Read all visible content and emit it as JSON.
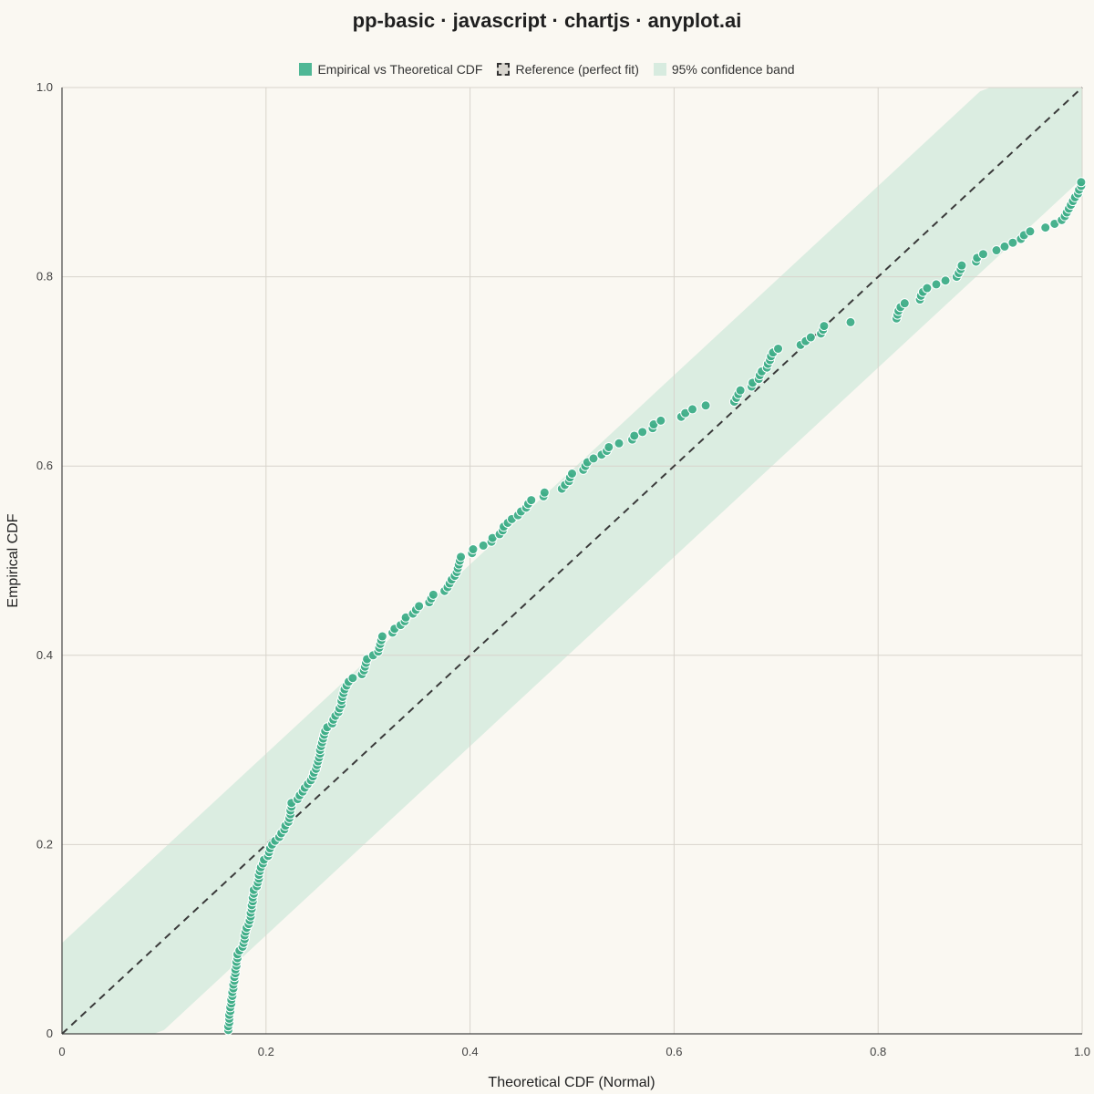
{
  "chart_data": {
    "type": "scatter",
    "title": "pp-basic · javascript · chartjs · anyplot.ai",
    "xlabel": "Theoretical CDF (Normal)",
    "ylabel": "Empirical CDF",
    "xlim": [
      0,
      1
    ],
    "ylim": [
      0,
      1
    ],
    "x_ticks": [
      "0",
      "0.2",
      "0.4",
      "0.6",
      "0.8",
      "1.0"
    ],
    "y_ticks": [
      "0",
      "0.2",
      "0.4",
      "0.6",
      "0.8",
      "1.0"
    ],
    "grid": true,
    "legend": {
      "position": "top",
      "entries": [
        "Empirical vs Theoretical CDF",
        "Reference (perfect fit)",
        "95% confidence band"
      ]
    },
    "colors": {
      "points": "#3fae88",
      "point_border": "#ffffff",
      "band": "#d7ebdf",
      "reference": "#3a3a3a",
      "grid": "#d8d4cc",
      "axis": "#444444"
    },
    "band_half_width": 0.096,
    "series": [
      {
        "name": "Empirical vs Theoretical CDF",
        "points": [
          [
            0.163,
            0.004
          ],
          [
            0.163,
            0.008
          ],
          [
            0.164,
            0.012
          ],
          [
            0.164,
            0.016
          ],
          [
            0.164,
            0.02
          ],
          [
            0.165,
            0.024
          ],
          [
            0.165,
            0.028
          ],
          [
            0.166,
            0.032
          ],
          [
            0.166,
            0.036
          ],
          [
            0.167,
            0.04
          ],
          [
            0.167,
            0.044
          ],
          [
            0.168,
            0.048
          ],
          [
            0.168,
            0.052
          ],
          [
            0.169,
            0.056
          ],
          [
            0.169,
            0.06
          ],
          [
            0.17,
            0.064
          ],
          [
            0.17,
            0.068
          ],
          [
            0.171,
            0.072
          ],
          [
            0.171,
            0.076
          ],
          [
            0.172,
            0.08
          ],
          [
            0.172,
            0.084
          ],
          [
            0.174,
            0.088
          ],
          [
            0.177,
            0.092
          ],
          [
            0.178,
            0.096
          ],
          [
            0.179,
            0.1
          ],
          [
            0.179,
            0.104
          ],
          [
            0.18,
            0.108
          ],
          [
            0.181,
            0.112
          ],
          [
            0.183,
            0.116
          ],
          [
            0.184,
            0.12
          ],
          [
            0.185,
            0.124
          ],
          [
            0.185,
            0.128
          ],
          [
            0.186,
            0.132
          ],
          [
            0.186,
            0.136
          ],
          [
            0.187,
            0.14
          ],
          [
            0.187,
            0.144
          ],
          [
            0.188,
            0.148
          ],
          [
            0.188,
            0.152
          ],
          [
            0.191,
            0.156
          ],
          [
            0.192,
            0.16
          ],
          [
            0.193,
            0.164
          ],
          [
            0.193,
            0.168
          ],
          [
            0.194,
            0.172
          ],
          [
            0.195,
            0.176
          ],
          [
            0.197,
            0.18
          ],
          [
            0.198,
            0.184
          ],
          [
            0.202,
            0.188
          ],
          [
            0.203,
            0.192
          ],
          [
            0.204,
            0.196
          ],
          [
            0.206,
            0.2
          ],
          [
            0.209,
            0.204
          ],
          [
            0.213,
            0.208
          ],
          [
            0.215,
            0.212
          ],
          [
            0.218,
            0.216
          ],
          [
            0.219,
            0.22
          ],
          [
            0.222,
            0.224
          ],
          [
            0.223,
            0.228
          ],
          [
            0.224,
            0.232
          ],
          [
            0.224,
            0.236
          ],
          [
            0.225,
            0.24
          ],
          [
            0.225,
            0.244
          ],
          [
            0.231,
            0.248
          ],
          [
            0.233,
            0.252
          ],
          [
            0.236,
            0.256
          ],
          [
            0.238,
            0.26
          ],
          [
            0.241,
            0.264
          ],
          [
            0.244,
            0.268
          ],
          [
            0.246,
            0.272
          ],
          [
            0.247,
            0.276
          ],
          [
            0.249,
            0.28
          ],
          [
            0.25,
            0.284
          ],
          [
            0.251,
            0.288
          ],
          [
            0.252,
            0.292
          ],
          [
            0.253,
            0.296
          ],
          [
            0.253,
            0.3
          ],
          [
            0.254,
            0.304
          ],
          [
            0.255,
            0.308
          ],
          [
            0.256,
            0.312
          ],
          [
            0.257,
            0.316
          ],
          [
            0.258,
            0.32
          ],
          [
            0.26,
            0.324
          ],
          [
            0.265,
            0.328
          ],
          [
            0.266,
            0.332
          ],
          [
            0.268,
            0.336
          ],
          [
            0.271,
            0.34
          ],
          [
            0.272,
            0.344
          ],
          [
            0.274,
            0.348
          ],
          [
            0.274,
            0.352
          ],
          [
            0.275,
            0.356
          ],
          [
            0.276,
            0.36
          ],
          [
            0.277,
            0.364
          ],
          [
            0.279,
            0.368
          ],
          [
            0.281,
            0.372
          ],
          [
            0.285,
            0.376
          ],
          [
            0.294,
            0.38
          ],
          [
            0.296,
            0.384
          ],
          [
            0.297,
            0.388
          ],
          [
            0.298,
            0.392
          ],
          [
            0.299,
            0.396
          ],
          [
            0.305,
            0.4
          ],
          [
            0.31,
            0.404
          ],
          [
            0.311,
            0.408
          ],
          [
            0.312,
            0.412
          ],
          [
            0.313,
            0.416
          ],
          [
            0.314,
            0.42
          ],
          [
            0.324,
            0.424
          ],
          [
            0.326,
            0.428
          ],
          [
            0.332,
            0.432
          ],
          [
            0.336,
            0.436
          ],
          [
            0.337,
            0.44
          ],
          [
            0.344,
            0.444
          ],
          [
            0.347,
            0.448
          ],
          [
            0.35,
            0.452
          ],
          [
            0.36,
            0.456
          ],
          [
            0.362,
            0.46
          ],
          [
            0.364,
            0.464
          ],
          [
            0.375,
            0.468
          ],
          [
            0.378,
            0.472
          ],
          [
            0.38,
            0.476
          ],
          [
            0.382,
            0.48
          ],
          [
            0.385,
            0.484
          ],
          [
            0.387,
            0.488
          ],
          [
            0.388,
            0.492
          ],
          [
            0.389,
            0.496
          ],
          [
            0.39,
            0.5
          ],
          [
            0.391,
            0.504
          ],
          [
            0.402,
            0.508
          ],
          [
            0.403,
            0.512
          ],
          [
            0.413,
            0.516
          ],
          [
            0.421,
            0.52
          ],
          [
            0.422,
            0.524
          ],
          [
            0.429,
            0.528
          ],
          [
            0.432,
            0.532
          ],
          [
            0.433,
            0.536
          ],
          [
            0.437,
            0.54
          ],
          [
            0.441,
            0.544
          ],
          [
            0.447,
            0.548
          ],
          [
            0.45,
            0.552
          ],
          [
            0.455,
            0.556
          ],
          [
            0.457,
            0.56
          ],
          [
            0.46,
            0.564
          ],
          [
            0.472,
            0.568
          ],
          [
            0.473,
            0.572
          ],
          [
            0.49,
            0.576
          ],
          [
            0.493,
            0.58
          ],
          [
            0.497,
            0.584
          ],
          [
            0.498,
            0.588
          ],
          [
            0.5,
            0.592
          ],
          [
            0.511,
            0.596
          ],
          [
            0.513,
            0.6
          ],
          [
            0.515,
            0.604
          ],
          [
            0.521,
            0.608
          ],
          [
            0.529,
            0.612
          ],
          [
            0.534,
            0.616
          ],
          [
            0.536,
            0.62
          ],
          [
            0.546,
            0.624
          ],
          [
            0.559,
            0.628
          ],
          [
            0.561,
            0.632
          ],
          [
            0.569,
            0.636
          ],
          [
            0.579,
            0.64
          ],
          [
            0.58,
            0.644
          ],
          [
            0.587,
            0.648
          ],
          [
            0.607,
            0.652
          ],
          [
            0.611,
            0.656
          ],
          [
            0.618,
            0.66
          ],
          [
            0.631,
            0.664
          ],
          [
            0.659,
            0.668
          ],
          [
            0.661,
            0.672
          ],
          [
            0.663,
            0.676
          ],
          [
            0.665,
            0.68
          ],
          [
            0.676,
            0.684
          ],
          [
            0.677,
            0.688
          ],
          [
            0.683,
            0.692
          ],
          [
            0.684,
            0.696
          ],
          [
            0.686,
            0.7
          ],
          [
            0.691,
            0.704
          ],
          [
            0.692,
            0.708
          ],
          [
            0.694,
            0.712
          ],
          [
            0.695,
            0.716
          ],
          [
            0.697,
            0.72
          ],
          [
            0.702,
            0.724
          ],
          [
            0.724,
            0.728
          ],
          [
            0.729,
            0.732
          ],
          [
            0.734,
            0.736
          ],
          [
            0.744,
            0.74
          ],
          [
            0.746,
            0.744
          ],
          [
            0.747,
            0.748
          ],
          [
            0.773,
            0.752
          ],
          [
            0.818,
            0.756
          ],
          [
            0.819,
            0.76
          ],
          [
            0.82,
            0.764
          ],
          [
            0.822,
            0.768
          ],
          [
            0.826,
            0.772
          ],
          [
            0.841,
            0.776
          ],
          [
            0.842,
            0.78
          ],
          [
            0.844,
            0.784
          ],
          [
            0.848,
            0.788
          ],
          [
            0.857,
            0.792
          ],
          [
            0.866,
            0.796
          ],
          [
            0.877,
            0.8
          ],
          [
            0.879,
            0.804
          ],
          [
            0.881,
            0.808
          ],
          [
            0.882,
            0.812
          ],
          [
            0.896,
            0.816
          ],
          [
            0.897,
            0.82
          ],
          [
            0.903,
            0.824
          ],
          [
            0.916,
            0.828
          ],
          [
            0.924,
            0.832
          ],
          [
            0.932,
            0.836
          ],
          [
            0.94,
            0.84
          ],
          [
            0.943,
            0.844
          ],
          [
            0.949,
            0.848
          ],
          [
            0.964,
            0.852
          ],
          [
            0.973,
            0.856
          ],
          [
            0.98,
            0.86
          ],
          [
            0.983,
            0.864
          ],
          [
            0.985,
            0.868
          ],
          [
            0.987,
            0.872
          ],
          [
            0.989,
            0.876
          ],
          [
            0.991,
            0.88
          ],
          [
            0.993,
            0.884
          ],
          [
            0.996,
            0.888
          ],
          [
            0.997,
            0.892
          ],
          [
            0.999,
            0.896
          ],
          [
            0.999,
            0.9
          ]
        ]
      }
    ]
  }
}
